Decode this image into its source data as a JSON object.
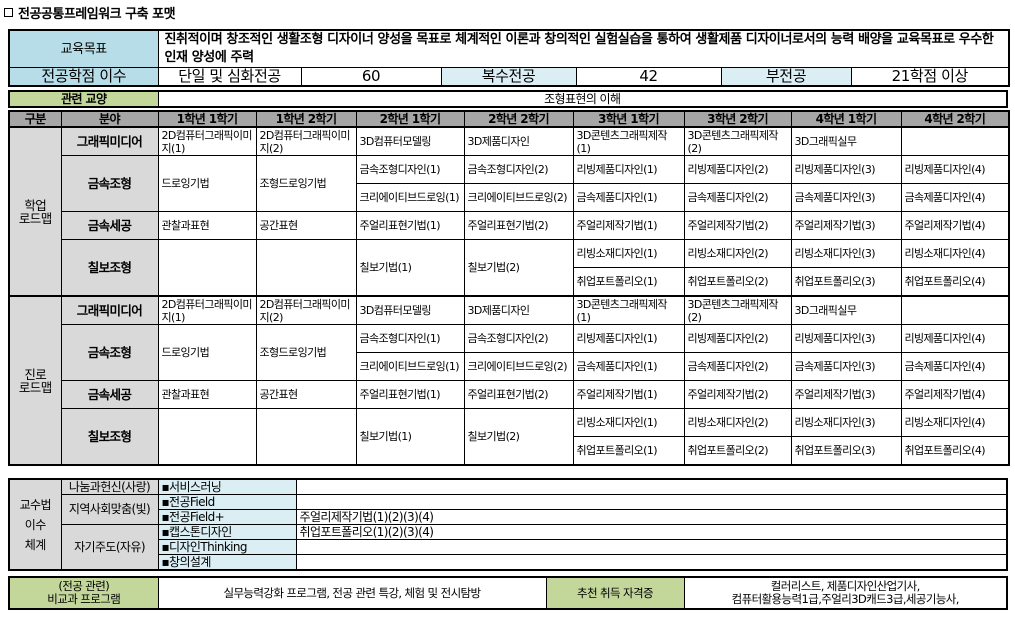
{
  "title": "전공공통프레임워크 구축 포맷",
  "objective": {
    "label": "교육목표",
    "text": "진취적이며 창조적인 생활조형 디자이너 양성을 목표로 체계적인 이론과 창의적인 실험실습을 통하여 생활제품 디자이너로서의 능력 배양을 교육목표로 우수한 인재 양성에 주력"
  },
  "credits": {
    "label": "전공학점 이수",
    "single_label": "단일 및 심화전공",
    "single_value": "60",
    "double_label": "복수전공",
    "double_value": "42",
    "minor_label": "부전공",
    "minor_value": "21학점 이상"
  },
  "related": {
    "label": "관련 교양",
    "value": "조형표현의 이해"
  },
  "colors": {
    "header_blue": "#b7dee8",
    "light_blue": "#daeef3",
    "green": "#c4d79b",
    "gray": "#d9d9d9",
    "dark_gray": "#a6a6a6"
  },
  "roadmap_headers": [
    "구분",
    "분야",
    "1학년 1학기",
    "1학년 2학기",
    "2학년 1학기",
    "2학년 2학기",
    "3학년 1학기",
    "3학년 2학기",
    "4학년 1학기",
    "4학년 2학기"
  ],
  "roadmaps": [
    {
      "group": "학업\n로드맵",
      "fields": [
        {
          "name": "그래픽미디어",
          "cells": [
            "2D컴퓨터그래픽이미지(1)",
            "2D컴퓨터그래픽이미지(2)",
            "3D컴퓨터모델링",
            "3D제품디자인",
            "3D콘텐츠그래픽제작(1)",
            "3D콘텐츠그래픽제작(2)",
            "3D그래픽실무",
            ""
          ]
        },
        {
          "name": "금속조형",
          "cells": [
            "드로잉기법",
            "조형드로잉기법",
            [
              "금속조형디자인(1)",
              "크리에이티브드로잉(1)"
            ],
            [
              "금속조형디자인(2)",
              "크리에이티브드로잉(2)"
            ],
            [
              "리빙제품디자인(1)",
              "금속제품디자인(1)"
            ],
            [
              "리빙제품디자인(2)",
              "금속제품디자인(2)"
            ],
            [
              "리빙제품디자인(3)",
              "금속제품디자인(3)"
            ],
            [
              "리빙제품디자인(4)",
              "금속제품디자인(4)"
            ]
          ]
        },
        {
          "name": "금속세공",
          "cells": [
            "관찰과표현",
            "공간표현",
            "주얼리표현기법(1)",
            "주얼리표현기법(2)",
            "주얼리제작기법(1)",
            "주얼리제작기법(2)",
            "주얼리제작기법(3)",
            "주얼리제작기법(4)"
          ]
        },
        {
          "name": "칠보조형",
          "cells": [
            "",
            "",
            "칠보기법(1)",
            "칠보기법(2)",
            [
              "리빙소재디자인(1)",
              "취업포트폴리오(1)"
            ],
            [
              "리빙소재디자인(2)",
              "취업포트폴리오(2)"
            ],
            [
              "리빙소재디자인(3)",
              "취업포트폴리오(3)"
            ],
            [
              "리빙소재디자인(4)",
              "취업포트폴리오(4)"
            ]
          ]
        }
      ]
    },
    {
      "group": "진로\n로드맵",
      "fields": [
        {
          "name": "그래픽미디어",
          "cells": [
            "2D컴퓨터그래픽이미지(1)",
            "2D컴퓨터그래픽이미지(2)",
            "3D컴퓨터모델링",
            "3D제품디자인",
            "3D콘텐츠그래픽제작(1)",
            "3D콘텐츠그래픽제작(2)",
            "3D그래픽실무",
            ""
          ]
        },
        {
          "name": "금속조형",
          "cells": [
            "드로잉기법",
            "조형드로잉기법",
            [
              "금속조형디자인(1)",
              "크리에이티브드로잉(1)"
            ],
            [
              "금속조형디자인(2)",
              "크리에이티브드로잉(2)"
            ],
            [
              "리빙제품디자인(1)",
              "금속제품디자인(1)"
            ],
            [
              "리빙제품디자인(2)",
              "금속제품디자인(2)"
            ],
            [
              "리빙제품디자인(3)",
              "금속제품디자인(3)"
            ],
            [
              "리빙제품디자인(4)",
              "금속제품디자인(4)"
            ]
          ]
        },
        {
          "name": "금속세공",
          "cells": [
            "관찰과표현",
            "공간표현",
            "주얼리표현기법(1)",
            "주얼리표현기법(2)",
            "주얼리제작기법(1)",
            "주얼리제작기법(2)",
            "주얼리제작기법(3)",
            "주얼리제작기법(4)"
          ]
        },
        {
          "name": "칠보조형",
          "cells": [
            "",
            "",
            "칠보기법(1)",
            "칠보기법(2)",
            [
              "리빙소재디자인(1)",
              "취업포트폴리오(1)"
            ],
            [
              "리빙소재디자인(2)",
              "취업포트폴리오(2)"
            ],
            [
              "리빙소재디자인(3)",
              "취업포트폴리오(3)"
            ],
            [
              "리빙소재디자인(4)",
              "취업포트폴리오(4)"
            ]
          ]
        }
      ]
    }
  ],
  "teaching": {
    "label": "교수법\n이수\n체계",
    "categories": [
      {
        "name": "나눔과헌신(사랑)",
        "items": [
          {
            "item": "▪서비스러닝",
            "value": ""
          }
        ]
      },
      {
        "name": "지역사회맞춤(빛)",
        "items": [
          {
            "item": "▪전공Field",
            "value": ""
          },
          {
            "item": "▪전공Field+",
            "value": "주얼리제작기법(1)(2)(3)(4)"
          }
        ]
      },
      {
        "name": "자기주도(자유)",
        "items": [
          {
            "item": "▪캡스톤디자인",
            "value": "취업포트폴리오(1)(2)(3)(4)"
          },
          {
            "item": "▪디자인Thinking",
            "value": ""
          },
          {
            "item": "▪창의설계",
            "value": ""
          }
        ]
      }
    ]
  },
  "extra": {
    "label_line1": "(전공 관련)",
    "label_line2": "비교과 프로그램",
    "programs": "실무능력강화 프로그램, 전공 관련 특강,  체험 및 전시탐방",
    "cert_label": "추천 취득 자격증",
    "cert_line1": "컬러리스트, 제품디자인산업기사,",
    "cert_line2": "컴퓨터활용능력1급,주얼리3D캐드3급,세공기능사,"
  }
}
